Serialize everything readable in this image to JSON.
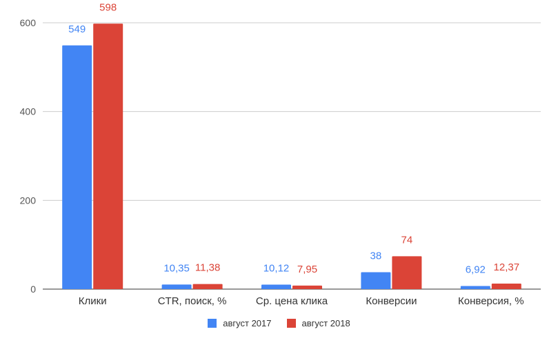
{
  "chart_data": {
    "type": "bar",
    "categories": [
      "Клики",
      "CTR, поиск, %",
      "Ср. цена клика",
      "Конверсии",
      "Конверсия, %"
    ],
    "series": [
      {
        "name": "август 2017",
        "color": "#4285F4",
        "values": [
          549,
          10.35,
          10.12,
          38,
          6.92
        ],
        "labels": [
          "549",
          "10,35",
          "10,12",
          "38",
          "6,92"
        ]
      },
      {
        "name": "август 2018",
        "color": "#DB4437",
        "values": [
          598,
          11.38,
          7.95,
          74,
          12.37
        ],
        "labels": [
          "598",
          "11,38",
          "7,95",
          "74",
          "12,37"
        ]
      }
    ],
    "y_ticks": [
      0,
      200,
      400,
      600
    ],
    "ylim": [
      0,
      600
    ],
    "grid": true,
    "legend_position": "bottom",
    "title": "",
    "xlabel": "",
    "ylabel": ""
  }
}
